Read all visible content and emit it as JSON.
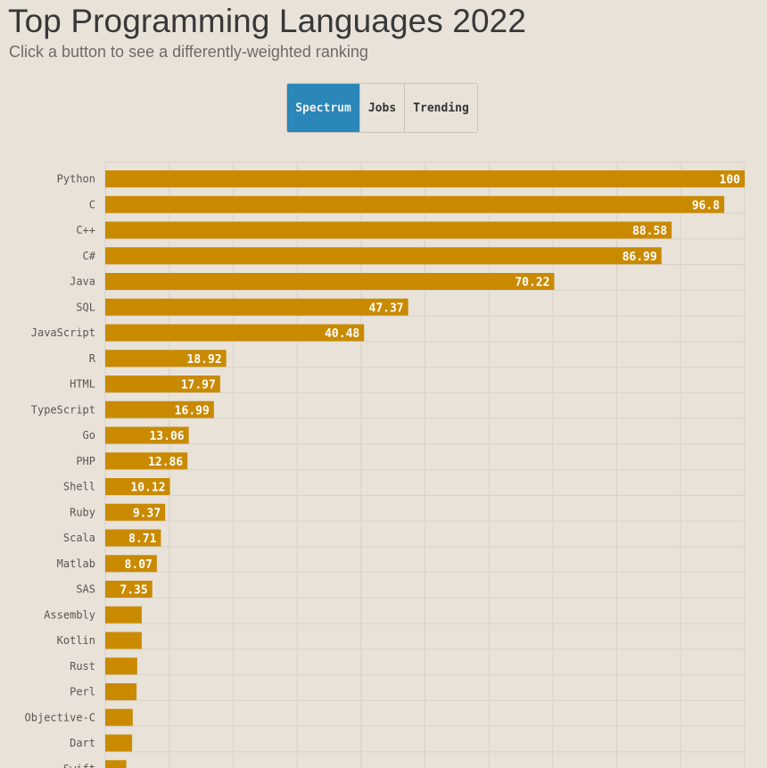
{
  "header": {
    "title": "Top Programming Languages 2022",
    "subtitle": "Click a button to see a differently-weighted ranking"
  },
  "buttons": [
    {
      "label": "Spectrum",
      "active": true
    },
    {
      "label": "Jobs",
      "active": false
    },
    {
      "label": "Trending",
      "active": false
    }
  ],
  "colors": {
    "bar": "#c98a00",
    "background": "#e8e2d9",
    "active_button": "#2a87b8",
    "grid": "#d8d2c8",
    "label_text": "#5a5652",
    "value_text": "#ffffff"
  },
  "chart_data": {
    "type": "bar",
    "orientation": "horizontal",
    "title": "Top Programming Languages 2022",
    "subtitle": "Click a button to see a differently-weighted ranking",
    "xlabel": "",
    "ylabel": "",
    "xlim": [
      0,
      100
    ],
    "grid": true,
    "categories": [
      "Python",
      "C",
      "C++",
      "C#",
      "Java",
      "SQL",
      "JavaScript",
      "R",
      "HTML",
      "TypeScript",
      "Go",
      "PHP",
      "Shell",
      "Ruby",
      "Scala",
      "Matlab",
      "SAS",
      "Assembly",
      "Kotlin",
      "Rust",
      "Perl",
      "Objective-C",
      "Dart",
      "Swift"
    ],
    "values": [
      100,
      96.8,
      88.58,
      86.99,
      70.22,
      47.37,
      40.48,
      18.92,
      17.97,
      16.99,
      13.06,
      12.86,
      10.12,
      9.37,
      8.71,
      8.07,
      7.35,
      5.7,
      5.7,
      5.0,
      4.9,
      4.3,
      4.2,
      3.3
    ],
    "value_labels": [
      "100",
      "96.8",
      "88.58",
      "86.99",
      "70.22",
      "47.37",
      "40.48",
      "18.92",
      "17.97",
      "16.99",
      "13.06",
      "12.86",
      "10.12",
      "9.37",
      "8.71",
      "8.07",
      "7.35",
      "",
      "",
      "",
      "",
      "",
      "",
      ""
    ]
  }
}
